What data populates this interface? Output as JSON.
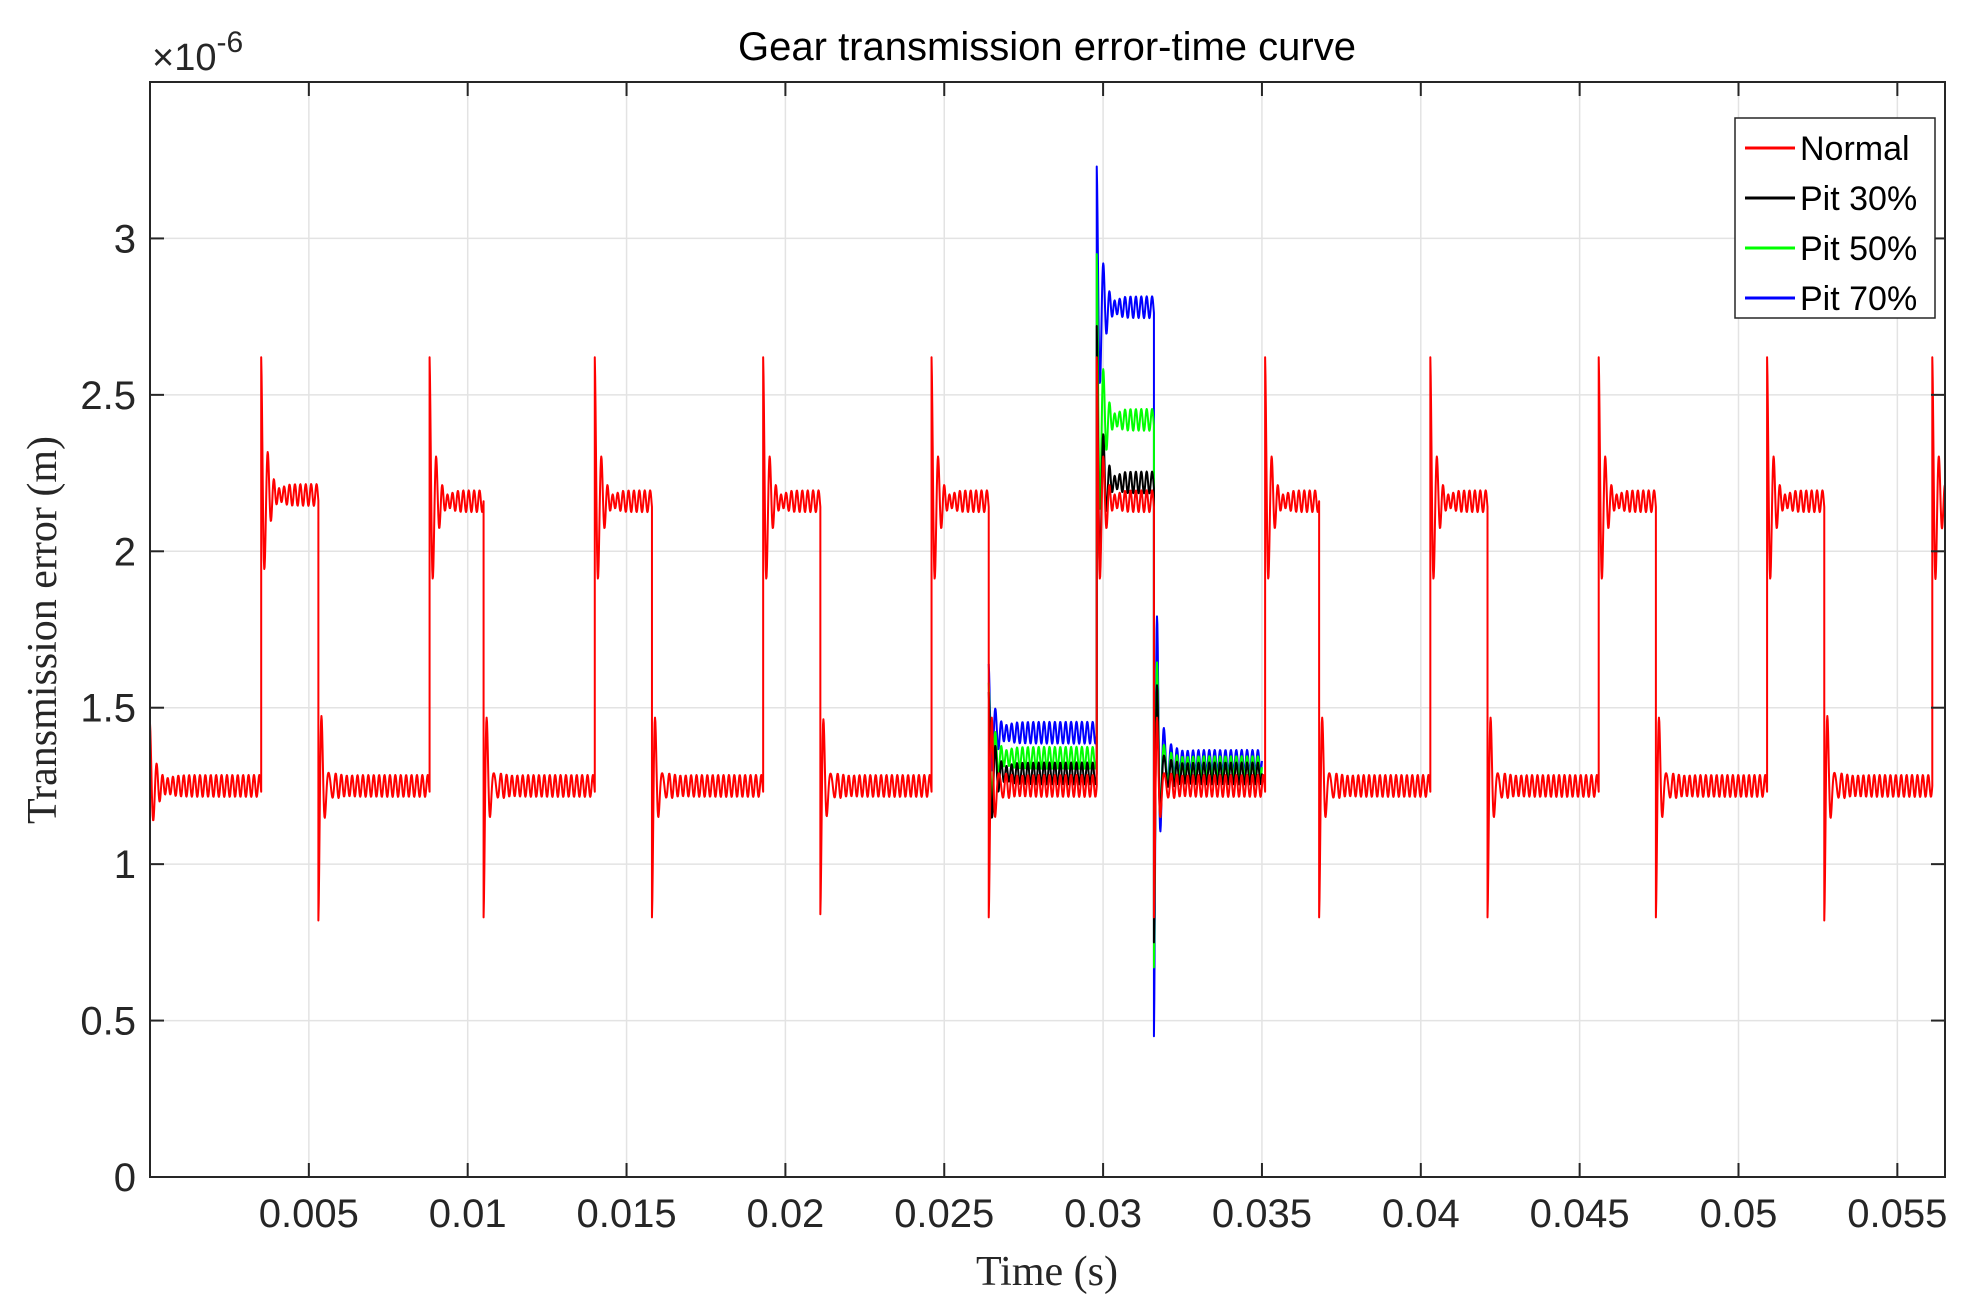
{
  "chart_data": {
    "type": "line",
    "title": "Gear transmission error-time curve",
    "xlabel": "Time (s)",
    "ylabel": "Transmission error (m)",
    "y_exponent_label": "×10",
    "y_exponent_power": "-6",
    "xlim": [
      0,
      0.0565
    ],
    "ylim": [
      0,
      3.5
    ],
    "grid": true,
    "legend_position": "top-right",
    "x_ticks": [
      {
        "value": 0.005,
        "label": "0.005"
      },
      {
        "value": 0.01,
        "label": "0.01"
      },
      {
        "value": 0.015,
        "label": "0.015"
      },
      {
        "value": 0.02,
        "label": "0.02"
      },
      {
        "value": 0.025,
        "label": "0.025"
      },
      {
        "value": 0.03,
        "label": "0.03"
      },
      {
        "value": 0.035,
        "label": "0.035"
      },
      {
        "value": 0.04,
        "label": "0.04"
      },
      {
        "value": 0.045,
        "label": "0.045"
      },
      {
        "value": 0.05,
        "label": "0.05"
      },
      {
        "value": 0.055,
        "label": "0.055"
      }
    ],
    "y_ticks": [
      {
        "value": 0,
        "label": "0"
      },
      {
        "value": 0.5,
        "label": "0.5"
      },
      {
        "value": 1,
        "label": "1"
      },
      {
        "value": 1.5,
        "label": "1.5"
      },
      {
        "value": 2,
        "label": "2"
      },
      {
        "value": 2.5,
        "label": "2.5"
      },
      {
        "value": 3,
        "label": "3"
      }
    ],
    "mesh_period": 0.00527,
    "fault_window": [
      0.0264,
      0.035
    ],
    "series": [
      {
        "name": "Normal",
        "color": "#ff0000",
        "phases": [
          {
            "start": 0.0,
            "end": 0.0035,
            "level": 1.25,
            "first_peak": 1.45
          },
          {
            "start": 0.0035,
            "end": 0.0053,
            "level": 2.18,
            "first_peak": 2.62
          },
          {
            "start": 0.0053,
            "end": 0.0088,
            "level": 1.25,
            "first_peak": 0.82
          },
          {
            "start": 0.0088,
            "end": 0.0105,
            "level": 2.16,
            "first_peak": 2.62
          },
          {
            "start": 0.0105,
            "end": 0.014,
            "level": 1.25,
            "first_peak": 0.83
          },
          {
            "start": 0.014,
            "end": 0.0158,
            "level": 2.16,
            "first_peak": 2.62
          },
          {
            "start": 0.0158,
            "end": 0.0193,
            "level": 1.25,
            "first_peak": 0.83
          },
          {
            "start": 0.0193,
            "end": 0.0211,
            "level": 2.16,
            "first_peak": 2.62
          },
          {
            "start": 0.0211,
            "end": 0.0246,
            "level": 1.25,
            "first_peak": 0.84
          },
          {
            "start": 0.0246,
            "end": 0.0264,
            "level": 2.16,
            "first_peak": 2.62
          },
          {
            "start": 0.0264,
            "end": 0.0298,
            "level": 1.25,
            "first_peak": 0.83
          },
          {
            "start": 0.0298,
            "end": 0.0316,
            "level": 2.16,
            "first_peak": 2.62
          },
          {
            "start": 0.0316,
            "end": 0.0351,
            "level": 1.25,
            "first_peak": 0.83
          },
          {
            "start": 0.0351,
            "end": 0.0368,
            "level": 2.16,
            "first_peak": 2.62
          },
          {
            "start": 0.0368,
            "end": 0.0403,
            "level": 1.25,
            "first_peak": 0.83
          },
          {
            "start": 0.0403,
            "end": 0.0421,
            "level": 2.16,
            "first_peak": 2.62
          },
          {
            "start": 0.0421,
            "end": 0.0456,
            "level": 1.25,
            "first_peak": 0.83
          },
          {
            "start": 0.0456,
            "end": 0.0474,
            "level": 2.16,
            "first_peak": 2.62
          },
          {
            "start": 0.0474,
            "end": 0.0509,
            "level": 1.25,
            "first_peak": 0.83
          },
          {
            "start": 0.0509,
            "end": 0.0527,
            "level": 2.16,
            "first_peak": 2.62
          },
          {
            "start": 0.0527,
            "end": 0.0561,
            "level": 1.25,
            "first_peak": 0.82
          },
          {
            "start": 0.0561,
            "end": 0.0565,
            "level": 2.16,
            "first_peak": 2.62
          }
        ]
      },
      {
        "name": "Pit 30%",
        "color": "#000000",
        "phases": [
          {
            "start": 0.0264,
            "end": 0.0298,
            "level": 1.29,
            "first_peak": 1.55
          },
          {
            "start": 0.0298,
            "end": 0.0316,
            "level": 2.22,
            "first_peak": 2.72
          },
          {
            "start": 0.0316,
            "end": 0.035,
            "level": 1.29,
            "first_peak": 0.75
          }
        ]
      },
      {
        "name": "Pit 50%",
        "color": "#00ff00",
        "phases": [
          {
            "start": 0.0264,
            "end": 0.0298,
            "level": 1.34,
            "first_peak": 1.58
          },
          {
            "start": 0.0298,
            "end": 0.0316,
            "level": 2.42,
            "first_peak": 2.95
          },
          {
            "start": 0.0316,
            "end": 0.035,
            "level": 1.31,
            "first_peak": 0.67
          }
        ]
      },
      {
        "name": "Pit 70%",
        "color": "#0000ff",
        "phases": [
          {
            "start": 0.0264,
            "end": 0.0298,
            "level": 1.42,
            "first_peak": 1.64
          },
          {
            "start": 0.0298,
            "end": 0.0316,
            "level": 2.78,
            "first_peak": 3.23
          },
          {
            "start": 0.0316,
            "end": 0.035,
            "level": 1.33,
            "first_peak": 0.45
          }
        ]
      }
    ]
  }
}
